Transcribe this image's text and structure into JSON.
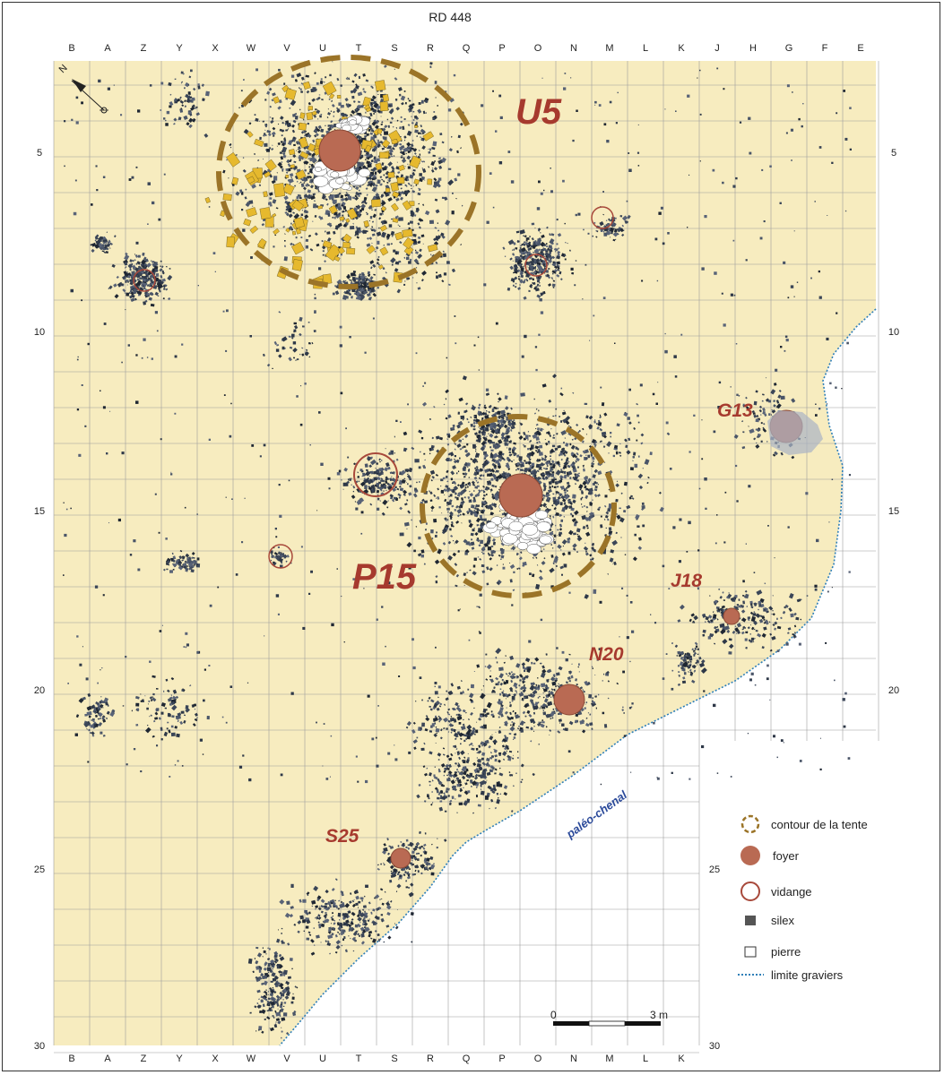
{
  "title": "RD 448",
  "columns": [
    "B",
    "A",
    "Z",
    "Y",
    "X",
    "W",
    "V",
    "U",
    "T",
    "S",
    "R",
    "Q",
    "P",
    "O",
    "N",
    "M",
    "L",
    "K",
    "J",
    "H",
    "G",
    "F",
    "E"
  ],
  "bottom_columns": [
    "B",
    "A",
    "Z",
    "Y",
    "X",
    "W",
    "V",
    "U",
    "T",
    "S",
    "R",
    "Q",
    "P",
    "O",
    "N",
    "M",
    "L",
    "K"
  ],
  "row_labels_left": [
    "5",
    "10",
    "15",
    "20",
    "25",
    "30"
  ],
  "row_labels_right": [
    "5",
    "10",
    "15",
    "20",
    "25",
    "30"
  ],
  "zones": [
    {
      "id": "u5",
      "label": "U5"
    },
    {
      "id": "p15",
      "label": "P15"
    },
    {
      "id": "g13",
      "label": "G13"
    },
    {
      "id": "j18",
      "label": "J18"
    },
    {
      "id": "n20",
      "label": "N20"
    },
    {
      "id": "s25",
      "label": "S25"
    }
  ],
  "paleochenal_label": "paléo-chenal",
  "legend": [
    {
      "id": "tent",
      "label": "contour de la tente",
      "symbol": "dashed-circle"
    },
    {
      "id": "hearth",
      "label": "foyer",
      "symbol": "filled-circle"
    },
    {
      "id": "dump",
      "label": "vidange",
      "symbol": "open-circle"
    },
    {
      "id": "flint",
      "label": "silex",
      "symbol": "dark-square"
    },
    {
      "id": "stone",
      "label": "pierre",
      "symbol": "open-square"
    },
    {
      "id": "gravel",
      "label": "limite graviers",
      "symbol": "dotted-line"
    }
  ],
  "scale": {
    "start": "0",
    "end": "3 m"
  },
  "colors": {
    "ground": "#f7ecbf",
    "hearth": "#b96a53",
    "dump": "#a8493b",
    "tent": "#9b7428",
    "flint": "#2e3848",
    "ochre": "#e6b92e",
    "gravel_line": "#2f7fb8",
    "label_red": "#a63a2e",
    "label_blue": "#2b4a9a"
  }
}
